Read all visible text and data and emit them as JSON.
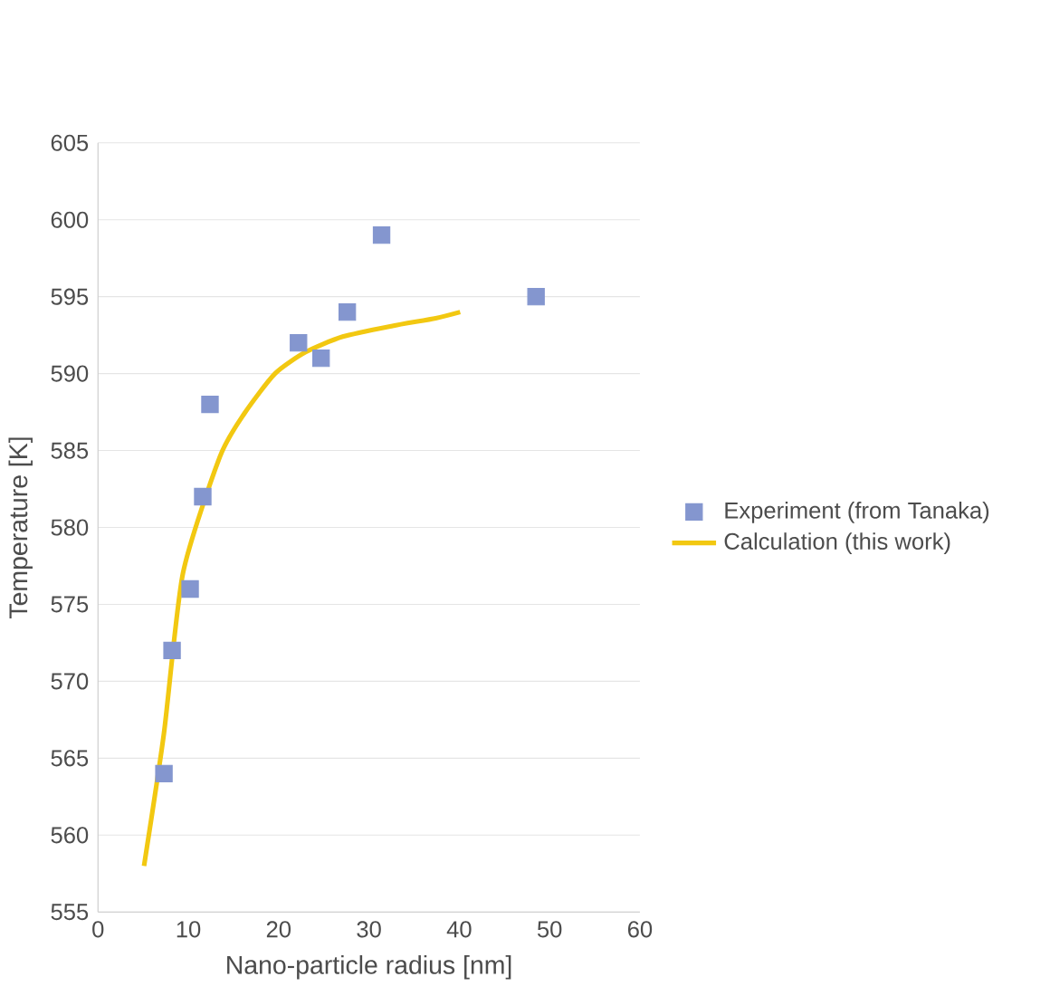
{
  "chart_data": {
    "type": "scatter",
    "xlabel": "Nano-particle radius [nm]",
    "ylabel": "Temperature [K]",
    "xlim": [
      0,
      60
    ],
    "xticks": [
      0,
      10,
      20,
      30,
      40,
      50,
      60
    ],
    "ylim": [
      555,
      605
    ],
    "yticks": [
      555,
      560,
      565,
      570,
      575,
      580,
      585,
      590,
      595,
      600,
      605
    ],
    "grid": "y",
    "legend": "right",
    "series": [
      {
        "name": "Experiment (from Tanaka)",
        "marker": "square",
        "color": "#8496cf",
        "x": [
          7.3,
          8.2,
          10.2,
          11.6,
          12.4,
          22.2,
          24.7,
          27.6,
          31.4,
          48.5
        ],
        "values": [
          564,
          572,
          576,
          582,
          588,
          592,
          591,
          594,
          599,
          595
        ]
      },
      {
        "name": "Calculation (this work)",
        "type": "line",
        "marker": "none",
        "color": "#f2c811",
        "x": [
          5.1,
          7.3,
          9.4,
          13.5,
          16.2,
          19.6,
          23,
          27.1,
          32.6,
          37.4,
          40.1
        ],
        "values": [
          558,
          566.6,
          577,
          584.6,
          587.4,
          590,
          591.4,
          592.4,
          593.1,
          593.6,
          594
        ]
      }
    ]
  }
}
